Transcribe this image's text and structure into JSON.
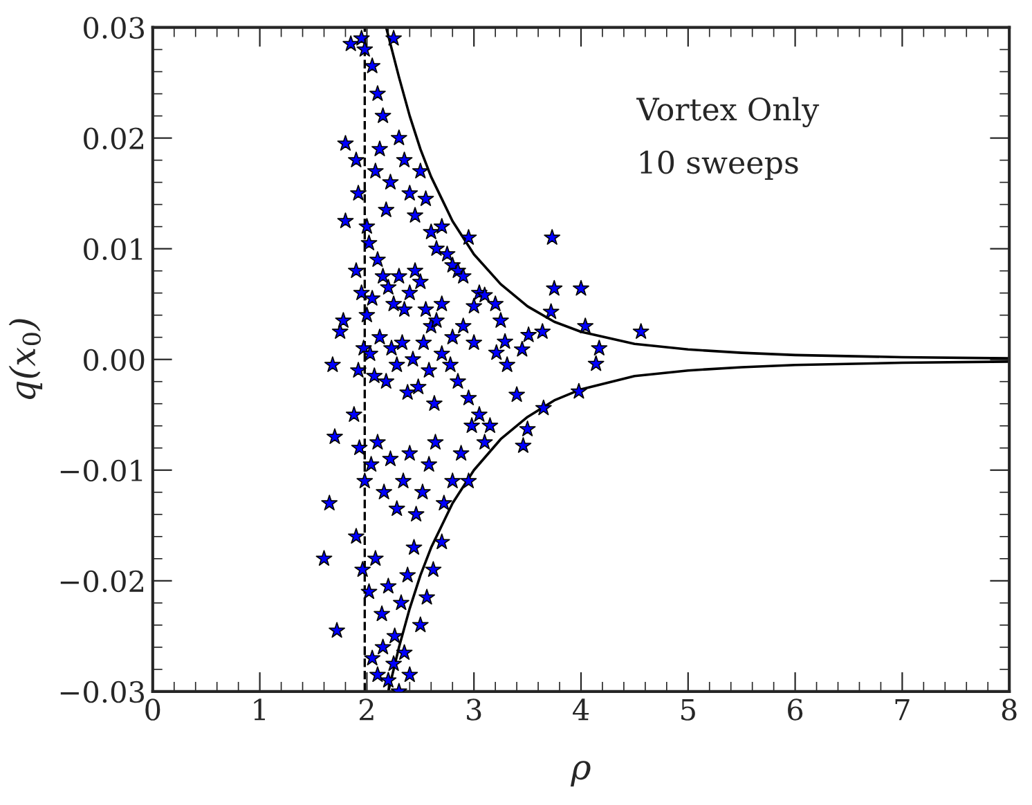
{
  "chart_data": {
    "type": "scatter",
    "xlabel": "ρ",
    "ylabel": "q(x$_{0}$)",
    "annotations": [
      "Vortex Only",
      "10 sweeps"
    ],
    "xlim": [
      0,
      8
    ],
    "ylim": [
      -0.03,
      0.03
    ],
    "xticks": [
      0,
      1,
      2,
      3,
      4,
      5,
      6,
      7,
      8
    ],
    "yticks": [
      {
        "value": -0.03,
        "label": "−0.03"
      },
      {
        "value": -0.02,
        "label": "−0.02"
      },
      {
        "value": -0.01,
        "label": "−0.01"
      },
      {
        "value": 0,
        "label": "0.00"
      },
      {
        "value": 0.01,
        "label": "0.01"
      },
      {
        "value": 0.02,
        "label": "0.02"
      },
      {
        "value": 0.03,
        "label": "0.03"
      }
    ],
    "grid": false,
    "ref_lines": [
      {
        "axis": "x",
        "value": 1.98,
        "color": "#000000",
        "line_style": "dashed"
      }
    ],
    "series": [
      {
        "color": "#0000ff",
        "marker": "star",
        "x": [
          1.6,
          1.72,
          1.65,
          1.7,
          1.68,
          1.75,
          1.8,
          1.8,
          1.85,
          1.78,
          1.95,
          1.98,
          2.05,
          2.1,
          2.15,
          2.25,
          1.9,
          1.92,
          2.0,
          2.02,
          2.08,
          2.12,
          2.18,
          2.22,
          2.3,
          2.35,
          2.4,
          2.45,
          2.5,
          2.55,
          2.6,
          2.65,
          2.7,
          2.75,
          2.8,
          2.85,
          2.9,
          2.95,
          3.0,
          3.05,
          3.1,
          3.2,
          3.25,
          1.9,
          1.95,
          2.0,
          2.05,
          2.1,
          2.15,
          2.2,
          2.25,
          2.3,
          2.35,
          2.4,
          2.45,
          2.5,
          2.55,
          2.6,
          2.65,
          2.7,
          2.8,
          2.9,
          3.0,
          1.92,
          1.97,
          2.03,
          2.07,
          2.12,
          2.18,
          2.23,
          2.28,
          2.33,
          2.38,
          2.43,
          2.48,
          2.53,
          2.58,
          2.63,
          2.7,
          2.78,
          2.85,
          2.95,
          3.05,
          3.15,
          1.88,
          1.93,
          1.98,
          2.04,
          2.1,
          2.16,
          2.22,
          2.28,
          2.34,
          2.4,
          2.46,
          2.52,
          2.58,
          2.64,
          2.72,
          2.8,
          2.88,
          2.98,
          3.1,
          1.9,
          1.96,
          2.02,
          2.08,
          2.14,
          2.2,
          2.26,
          2.32,
          2.38,
          2.44,
          2.5,
          2.56,
          2.62,
          2.7,
          2.95,
          3.73,
          3.75,
          4.0,
          3.72,
          4.04,
          4.56,
          4.17,
          4.14,
          3.98,
          3.65,
          3.5,
          3.46,
          3.4,
          3.51,
          3.64,
          3.45,
          3.29,
          3.31,
          3.21,
          2.05,
          2.1,
          2.15,
          2.2,
          2.25,
          2.3,
          2.35,
          2.4
        ],
        "values": [
          -0.018,
          -0.0245,
          -0.013,
          -0.007,
          -0.0005,
          0.0025,
          0.0195,
          0.0125,
          0.0285,
          0.0035,
          0.029,
          0.028,
          0.0265,
          0.024,
          0.022,
          0.029,
          0.018,
          0.015,
          0.012,
          0.0105,
          0.017,
          0.019,
          0.0135,
          0.016,
          0.02,
          0.018,
          0.015,
          0.013,
          0.017,
          0.0145,
          0.0115,
          0.01,
          0.012,
          0.0095,
          0.0085,
          0.008,
          0.0075,
          0.011,
          0.0048,
          0.006,
          0.0058,
          0.005,
          0.0035,
          0.008,
          0.006,
          0.004,
          0.0055,
          0.009,
          0.0075,
          0.0065,
          0.005,
          0.0075,
          0.0045,
          0.006,
          0.008,
          0.007,
          0.0045,
          0.003,
          0.0035,
          0.005,
          0.002,
          0.003,
          0.0015,
          -0.001,
          0.001,
          0.0005,
          -0.0015,
          0.002,
          -0.002,
          0.001,
          -0.0005,
          0.0015,
          -0.003,
          0.0,
          -0.0025,
          0.0015,
          -0.001,
          -0.004,
          0.0005,
          -0.0005,
          -0.002,
          -0.0035,
          -0.005,
          -0.006,
          -0.005,
          -0.008,
          -0.011,
          -0.0095,
          -0.0075,
          -0.012,
          -0.009,
          -0.0135,
          -0.011,
          -0.0085,
          -0.014,
          -0.012,
          -0.0095,
          -0.0075,
          -0.013,
          -0.011,
          -0.0085,
          -0.006,
          -0.0075,
          -0.016,
          -0.019,
          -0.021,
          -0.018,
          -0.023,
          -0.0205,
          -0.025,
          -0.022,
          -0.0195,
          -0.017,
          -0.024,
          -0.0215,
          -0.019,
          -0.0165,
          -0.011,
          0.011,
          0.0064,
          0.0064,
          0.0043,
          0.003,
          0.0025,
          0.001,
          -0.0004,
          -0.0029,
          -0.0044,
          -0.0063,
          -0.0078,
          -0.0032,
          0.0022,
          0.0025,
          0.0009,
          0.0016,
          -0.0005,
          0.0006,
          -0.027,
          -0.0285,
          -0.026,
          -0.029,
          -0.0275,
          -0.03,
          -0.0265,
          -0.0285
        ]
      },
      {
        "type": "line",
        "color": "#000000",
        "x": [
          2.18,
          2.3,
          2.4,
          2.5,
          2.6,
          2.7,
          2.8,
          3.0,
          3.25,
          3.5,
          3.75,
          4.0,
          4.5,
          5.0,
          5.5,
          6.0,
          7.0,
          8.0
        ],
        "values": [
          0.03,
          0.0255,
          0.022,
          0.019,
          0.0165,
          0.0145,
          0.0125,
          0.0095,
          0.0068,
          0.0048,
          0.0034,
          0.0025,
          0.0014,
          0.0009,
          0.0006,
          0.0004,
          0.0002,
          0.0001
        ]
      },
      {
        "type": "line",
        "color": "#000000",
        "x": [
          2.2,
          2.3,
          2.4,
          2.5,
          2.6,
          2.7,
          2.8,
          3.0,
          3.25,
          3.5,
          3.75,
          4.0,
          4.5,
          5.0,
          5.5,
          6.0,
          7.0,
          8.0
        ],
        "values": [
          -0.03,
          -0.026,
          -0.0225,
          -0.0195,
          -0.017,
          -0.015,
          -0.013,
          -0.01,
          -0.0072,
          -0.0052,
          -0.0037,
          -0.0027,
          -0.0015,
          -0.001,
          -0.0007,
          -0.0005,
          -0.0003,
          -0.0002
        ]
      }
    ]
  }
}
